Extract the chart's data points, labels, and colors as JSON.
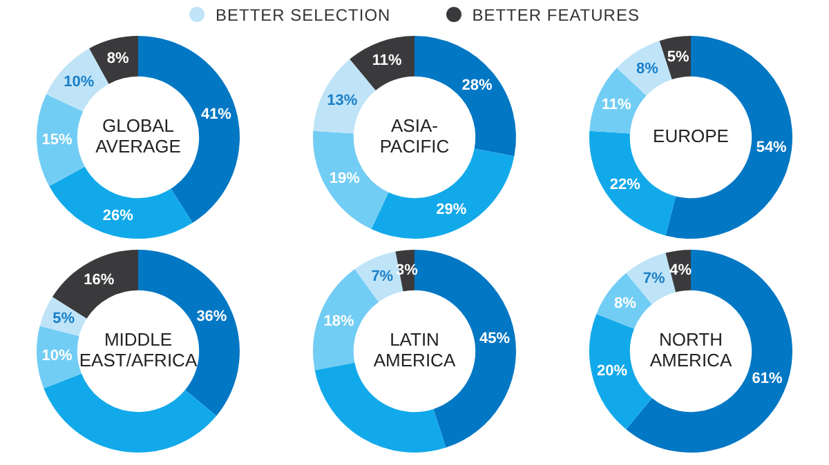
{
  "chart_data": [
    {
      "type": "donut",
      "title": "GLOBAL AVERAGE",
      "categories": [
        null,
        null,
        null,
        "BETTER SELECTION",
        "BETTER FEATURES"
      ],
      "values": [
        41,
        26,
        15,
        10,
        8
      ],
      "value_labels": [
        "41%",
        "26%",
        "15%",
        "10%",
        "8%"
      ],
      "colors": [
        "#0277c4",
        "#12a9ea",
        "#72cdf4",
        "#bfe4f8",
        "#3a3a3c"
      ],
      "legend": "top"
    },
    {
      "type": "donut",
      "title": "ASIA-PACIFIC",
      "values": [
        28,
        29,
        19,
        13,
        11
      ],
      "value_labels": [
        "28%",
        "29%",
        "19%",
        "13%",
        "11%"
      ],
      "colors": [
        "#0277c4",
        "#12a9ea",
        "#72cdf4",
        "#bfe4f8",
        "#3a3a3c"
      ]
    },
    {
      "type": "donut",
      "title": "EUROPE",
      "values": [
        54,
        22,
        11,
        8,
        5
      ],
      "value_labels": [
        "54%",
        "22%",
        "11%",
        "8%",
        "5%"
      ],
      "colors": [
        "#0277c4",
        "#12a9ea",
        "#72cdf4",
        "#bfe4f8",
        "#3a3a3c"
      ]
    },
    {
      "type": "donut",
      "title": "MIDDLE EAST/AFRICA",
      "values": [
        36,
        33,
        10,
        5,
        16
      ],
      "value_labels": [
        "36%",
        null,
        "10%",
        "5%",
        "16%"
      ],
      "colors": [
        "#0277c4",
        "#12a9ea",
        "#72cdf4",
        "#bfe4f8",
        "#3a3a3c"
      ]
    },
    {
      "type": "donut",
      "title": "LATIN AMERICA",
      "values": [
        45,
        27,
        18,
        7,
        3
      ],
      "value_labels": [
        "45%",
        null,
        "18%",
        "7%",
        "3%"
      ],
      "colors": [
        "#0277c4",
        "#12a9ea",
        "#72cdf4",
        "#bfe4f8",
        "#3a3a3c"
      ]
    },
    {
      "type": "donut",
      "title": "NORTH AMERICA",
      "values": [
        61,
        20,
        8,
        7,
        4
      ],
      "value_labels": [
        "61%",
        "20%",
        "8%",
        "7%",
        "4%"
      ],
      "colors": [
        "#0277c4",
        "#12a9ea",
        "#72cdf4",
        "#bfe4f8",
        "#3a3a3c"
      ]
    }
  ]
}
